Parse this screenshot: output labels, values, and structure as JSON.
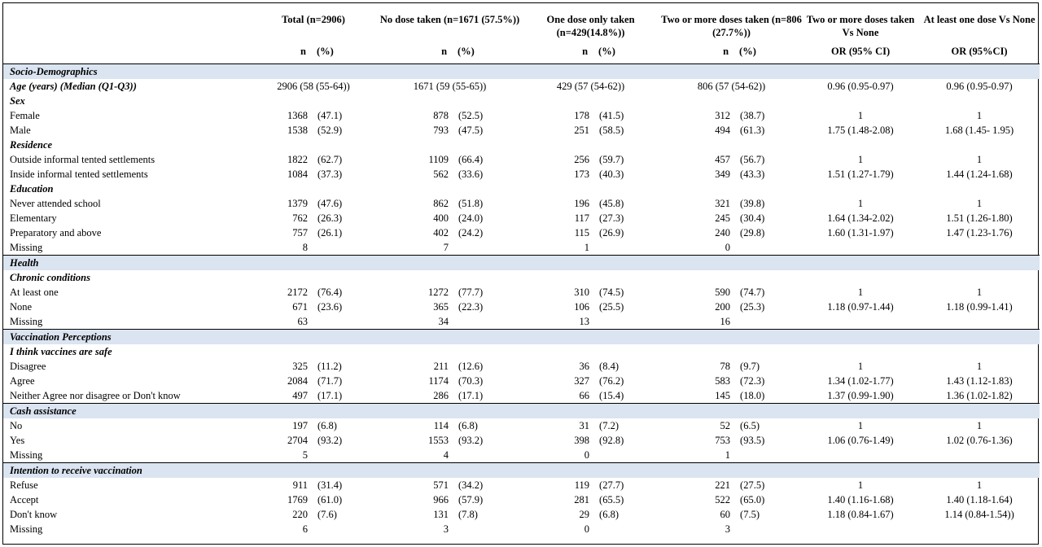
{
  "headers": {
    "total": "Total (n=2906)",
    "no_dose": "No dose taken (n=1671 (57.5%))",
    "one_dose": "One dose only taken (n=429(14.8%))",
    "two_dose": "Two or more doses taken (n=806 (27.7%))",
    "or_two": "Two or more doses taken Vs None",
    "or_one": "At least one dose Vs None",
    "n": "n",
    "pct": "(%)",
    "or_two_sub": "OR (95% CI)",
    "or_one_sub": "OR (95%CI)"
  },
  "rows": [
    {
      "type": "sec",
      "label": "Socio-Demographics"
    },
    {
      "type": "age",
      "label": "Age (years) (Median (Q1-Q3))",
      "total": "2906 (58 (55-64))",
      "none": "1671 (59 (55-65))",
      "one": "429 (57 (54-62))",
      "two": "806 (57 (54-62))",
      "or_two": "0.96 (0.95-0.97)",
      "or_one": "0.96 (0.95-0.97)"
    },
    {
      "type": "grp",
      "label": "Sex"
    },
    {
      "type": "row",
      "label": "Female",
      "c": [
        "1368",
        "(47.1)",
        "878",
        "(52.5)",
        "178",
        "(41.5)",
        "312",
        "(38.7)"
      ],
      "or_two": "1",
      "or_one": "1"
    },
    {
      "type": "row",
      "label": "Male",
      "c": [
        "1538",
        "(52.9)",
        "793",
        "(47.5)",
        "251",
        "(58.5)",
        "494",
        "(61.3)"
      ],
      "or_two": "1.75 (1.48-2.08)",
      "or_one": "1.68 (1.45- 1.95)"
    },
    {
      "type": "grp",
      "label": "Residence"
    },
    {
      "type": "row",
      "label": "Outside informal tented settlements",
      "c": [
        "1822",
        "(62.7)",
        "1109",
        "(66.4)",
        "256",
        "(59.7)",
        "457",
        "(56.7)"
      ],
      "or_two": "1",
      "or_one": "1"
    },
    {
      "type": "row",
      "label": "Inside informal tented settlements",
      "c": [
        "1084",
        "(37.3)",
        "562",
        "(33.6)",
        "173",
        "(40.3)",
        "349",
        "(43.3)"
      ],
      "or_two": "1.51 (1.27-1.79)",
      "or_one": "1.44 (1.24-1.68)"
    },
    {
      "type": "grp",
      "label": "Education"
    },
    {
      "type": "row",
      "label": "Never attended school",
      "c": [
        "1379",
        "(47.6)",
        "862",
        "(51.8)",
        "196",
        "(45.8)",
        "321",
        "(39.8)"
      ],
      "or_two": "1",
      "or_one": "1"
    },
    {
      "type": "row",
      "label": "Elementary",
      "c": [
        "762",
        "(26.3)",
        "400",
        "(24.0)",
        "117",
        "(27.3)",
        "245",
        "(30.4)"
      ],
      "or_two": "1.64 (1.34-2.02)",
      "or_one": "1.51 (1.26-1.80)"
    },
    {
      "type": "row",
      "label": "Preparatory and above",
      "c": [
        "757",
        "(26.1)",
        "402",
        "(24.2)",
        "115",
        "(26.9)",
        "240",
        "(29.8)"
      ],
      "or_two": "1.60 (1.31-1.97)",
      "or_one": "1.47 (1.23-1.76)"
    },
    {
      "type": "row",
      "label": "Missing",
      "c": [
        "8",
        "",
        "7",
        "",
        "1",
        "",
        "0",
        ""
      ],
      "or_two": "",
      "or_one": ""
    },
    {
      "type": "sec",
      "label": "Health"
    },
    {
      "type": "grp",
      "label": "Chronic conditions"
    },
    {
      "type": "row",
      "label": "At least one",
      "c": [
        "2172",
        "(76.4)",
        "1272",
        "(77.7)",
        "310",
        "(74.5)",
        "590",
        "(74.7)"
      ],
      "or_two": "1",
      "or_one": "1"
    },
    {
      "type": "row",
      "label": "None",
      "c": [
        "671",
        "(23.6)",
        "365",
        "(22.3)",
        "106",
        "(25.5)",
        "200",
        "(25.3)"
      ],
      "or_two": "1.18 (0.97-1.44)",
      "or_one": "1.18 (0.99-1.41)"
    },
    {
      "type": "row",
      "label": "Missing",
      "c": [
        "63",
        "",
        "34",
        "",
        "13",
        "",
        "16",
        ""
      ],
      "or_two": "",
      "or_one": ""
    },
    {
      "type": "sec",
      "label": "Vaccination Perceptions"
    },
    {
      "type": "grp",
      "label": "I think vaccines are safe"
    },
    {
      "type": "row",
      "label": "Disagree",
      "c": [
        "325",
        "(11.2)",
        "211",
        "(12.6)",
        "36",
        "(8.4)",
        "78",
        "(9.7)"
      ],
      "or_two": "1",
      "or_one": "1"
    },
    {
      "type": "row",
      "label": "Agree",
      "c": [
        "2084",
        "(71.7)",
        "1174",
        "(70.3)",
        "327",
        "(76.2)",
        "583",
        "(72.3)"
      ],
      "or_two": "1.34 (1.02-1.77)",
      "or_one": "1.43 (1.12-1.83)"
    },
    {
      "type": "row",
      "label": "Neither Agree nor disagree or Don't know",
      "c": [
        "497",
        "(17.1)",
        "286",
        "(17.1)",
        "66",
        "(15.4)",
        "145",
        "(18.0)"
      ],
      "or_two": "1.37 (0.99-1.90)",
      "or_one": "1.36 (1.02-1.82)"
    },
    {
      "type": "sec",
      "label": "Cash assistance"
    },
    {
      "type": "row",
      "label": "No",
      "c": [
        "197",
        "(6.8)",
        "114",
        "(6.8)",
        "31",
        "(7.2)",
        "52",
        "(6.5)"
      ],
      "or_two": "1",
      "or_one": "1"
    },
    {
      "type": "row",
      "label": "Yes",
      "c": [
        "2704",
        "(93.2)",
        "1553",
        "(93.2)",
        "398",
        "(92.8)",
        "753",
        "(93.5)"
      ],
      "or_two": "1.06 (0.76-1.49)",
      "or_one": "1.02 (0.76-1.36)"
    },
    {
      "type": "row",
      "label": "Missing",
      "c": [
        "5",
        "",
        "4",
        "",
        "0",
        "",
        "1",
        ""
      ],
      "or_two": "",
      "or_one": ""
    },
    {
      "type": "sec",
      "label": "Intention to receive vaccination"
    },
    {
      "type": "row",
      "label": "Refuse",
      "c": [
        "911",
        "(31.4)",
        "571",
        "(34.2)",
        "119",
        "(27.7)",
        "221",
        "(27.5)"
      ],
      "or_two": "1",
      "or_one": "1"
    },
    {
      "type": "row",
      "label": "Accept",
      "c": [
        "1769",
        "(61.0)",
        "966",
        "(57.9)",
        "281",
        "(65.5)",
        "522",
        "(65.0)"
      ],
      "or_two": "1.40 (1.16-1.68)",
      "or_one": "1.40 (1.18-1.64)"
    },
    {
      "type": "row",
      "label": "Don't know",
      "c": [
        "220",
        "(7.6)",
        "131",
        "(7.8)",
        "29",
        "(6.8)",
        "60",
        "(7.5)"
      ],
      "or_two": "1.18 (0.84-1.67)",
      "or_one": "1.14 (0.84-1.54))"
    },
    {
      "type": "row",
      "label": "Missing",
      "c": [
        "6",
        "",
        "3",
        "",
        "0",
        "",
        "3",
        ""
      ],
      "or_two": "",
      "or_one": ""
    }
  ]
}
